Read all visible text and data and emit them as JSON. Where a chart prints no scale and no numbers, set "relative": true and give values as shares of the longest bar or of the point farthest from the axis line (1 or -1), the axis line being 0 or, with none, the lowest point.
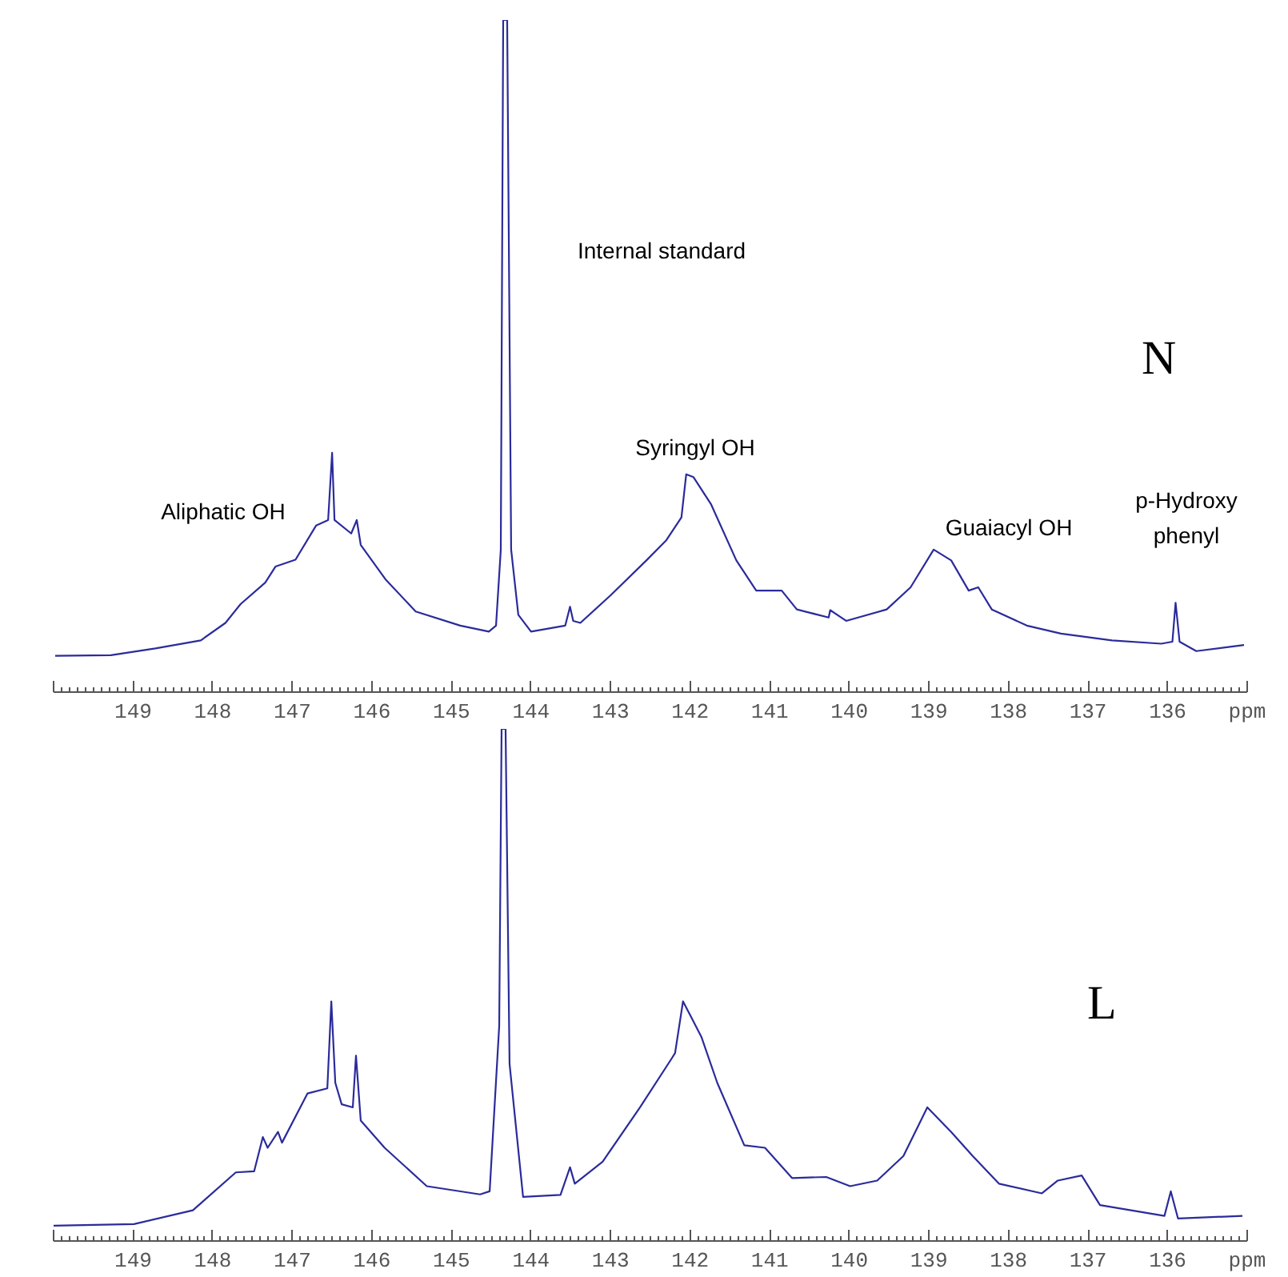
{
  "chart_data": [
    {
      "type": "line",
      "title": "N",
      "xlabel": "ppm",
      "relative": true,
      "color": "#2b2b9b",
      "line_style": "solid",
      "marker": "none",
      "grid": false,
      "tick_labels": "x",
      "xlim": [
        150,
        135
      ],
      "xticks": [
        149,
        148,
        147,
        146,
        145,
        144,
        143,
        142,
        141,
        140,
        139,
        138,
        137,
        136
      ],
      "x": [
        149.98,
        149.28,
        148.72,
        148.15,
        147.84,
        147.65,
        147.34,
        147.21,
        146.96,
        146.7,
        146.55,
        146.5,
        146.47,
        146.26,
        146.19,
        146.14,
        145.83,
        145.45,
        144.89,
        144.53,
        144.44,
        144.38,
        144.35,
        144.3,
        144.25,
        144.16,
        144.0,
        143.57,
        143.51,
        143.47,
        143.38,
        143.0,
        142.55,
        142.3,
        142.11,
        142.05,
        141.96,
        141.74,
        141.42,
        141.17,
        140.85,
        140.66,
        140.26,
        140.24,
        140.04,
        139.53,
        139.23,
        138.94,
        138.72,
        138.5,
        138.38,
        138.21,
        137.77,
        137.34,
        136.7,
        136.08,
        135.94,
        135.9,
        135.85,
        135.64,
        135.04
      ],
      "values": [
        0.054,
        0.055,
        0.065,
        0.077,
        0.103,
        0.131,
        0.163,
        0.187,
        0.197,
        0.248,
        0.256,
        0.356,
        0.256,
        0.236,
        0.256,
        0.219,
        0.168,
        0.12,
        0.099,
        0.09,
        0.099,
        0.212,
        1.0,
        1.0,
        0.212,
        0.115,
        0.09,
        0.099,
        0.127,
        0.106,
        0.103,
        0.144,
        0.196,
        0.226,
        0.26,
        0.324,
        0.32,
        0.28,
        0.196,
        0.151,
        0.151,
        0.123,
        0.111,
        0.122,
        0.106,
        0.123,
        0.156,
        0.212,
        0.196,
        0.151,
        0.156,
        0.123,
        0.099,
        0.087,
        0.077,
        0.072,
        0.075,
        0.133,
        0.075,
        0.061,
        0.07
      ],
      "annotations": [
        "Internal standard",
        "Aliphatic OH",
        "Syringyl OH",
        "Guaiacyl OH",
        "p-Hydroxy\nphenyl"
      ]
    },
    {
      "type": "line",
      "title": "L",
      "xlabel": "ppm",
      "relative": true,
      "color": "#2b2b9b",
      "line_style": "solid",
      "marker": "none",
      "grid": false,
      "tick_labels": "x",
      "xlim": [
        150,
        135
      ],
      "xticks": [
        149,
        148,
        147,
        146,
        145,
        144,
        143,
        142,
        141,
        140,
        139,
        138,
        137,
        136
      ],
      "x": [
        150.0,
        148.99,
        148.25,
        147.71,
        147.48,
        147.37,
        147.31,
        147.18,
        147.13,
        146.81,
        146.56,
        146.51,
        146.46,
        146.38,
        146.24,
        146.2,
        146.14,
        145.84,
        145.31,
        144.64,
        144.52,
        144.4,
        144.37,
        144.32,
        144.27,
        144.1,
        143.63,
        143.51,
        143.45,
        143.1,
        142.63,
        142.23,
        142.19,
        142.09,
        141.86,
        141.66,
        141.32,
        141.06,
        140.72,
        140.29,
        139.99,
        139.65,
        139.32,
        139.02,
        138.72,
        138.45,
        138.12,
        137.58,
        137.38,
        137.08,
        136.85,
        136.04,
        135.96,
        135.87,
        135.06
      ],
      "values": [
        0.03,
        0.033,
        0.06,
        0.134,
        0.136,
        0.203,
        0.182,
        0.213,
        0.192,
        0.288,
        0.298,
        0.468,
        0.309,
        0.267,
        0.261,
        0.362,
        0.235,
        0.182,
        0.107,
        0.091,
        0.097,
        0.42,
        1.0,
        1.0,
        0.346,
        0.086,
        0.09,
        0.144,
        0.112,
        0.155,
        0.261,
        0.357,
        0.367,
        0.468,
        0.399,
        0.309,
        0.187,
        0.182,
        0.123,
        0.125,
        0.107,
        0.118,
        0.166,
        0.261,
        0.213,
        0.166,
        0.112,
        0.093,
        0.118,
        0.128,
        0.07,
        0.049,
        0.097,
        0.044,
        0.049
      ]
    }
  ]
}
